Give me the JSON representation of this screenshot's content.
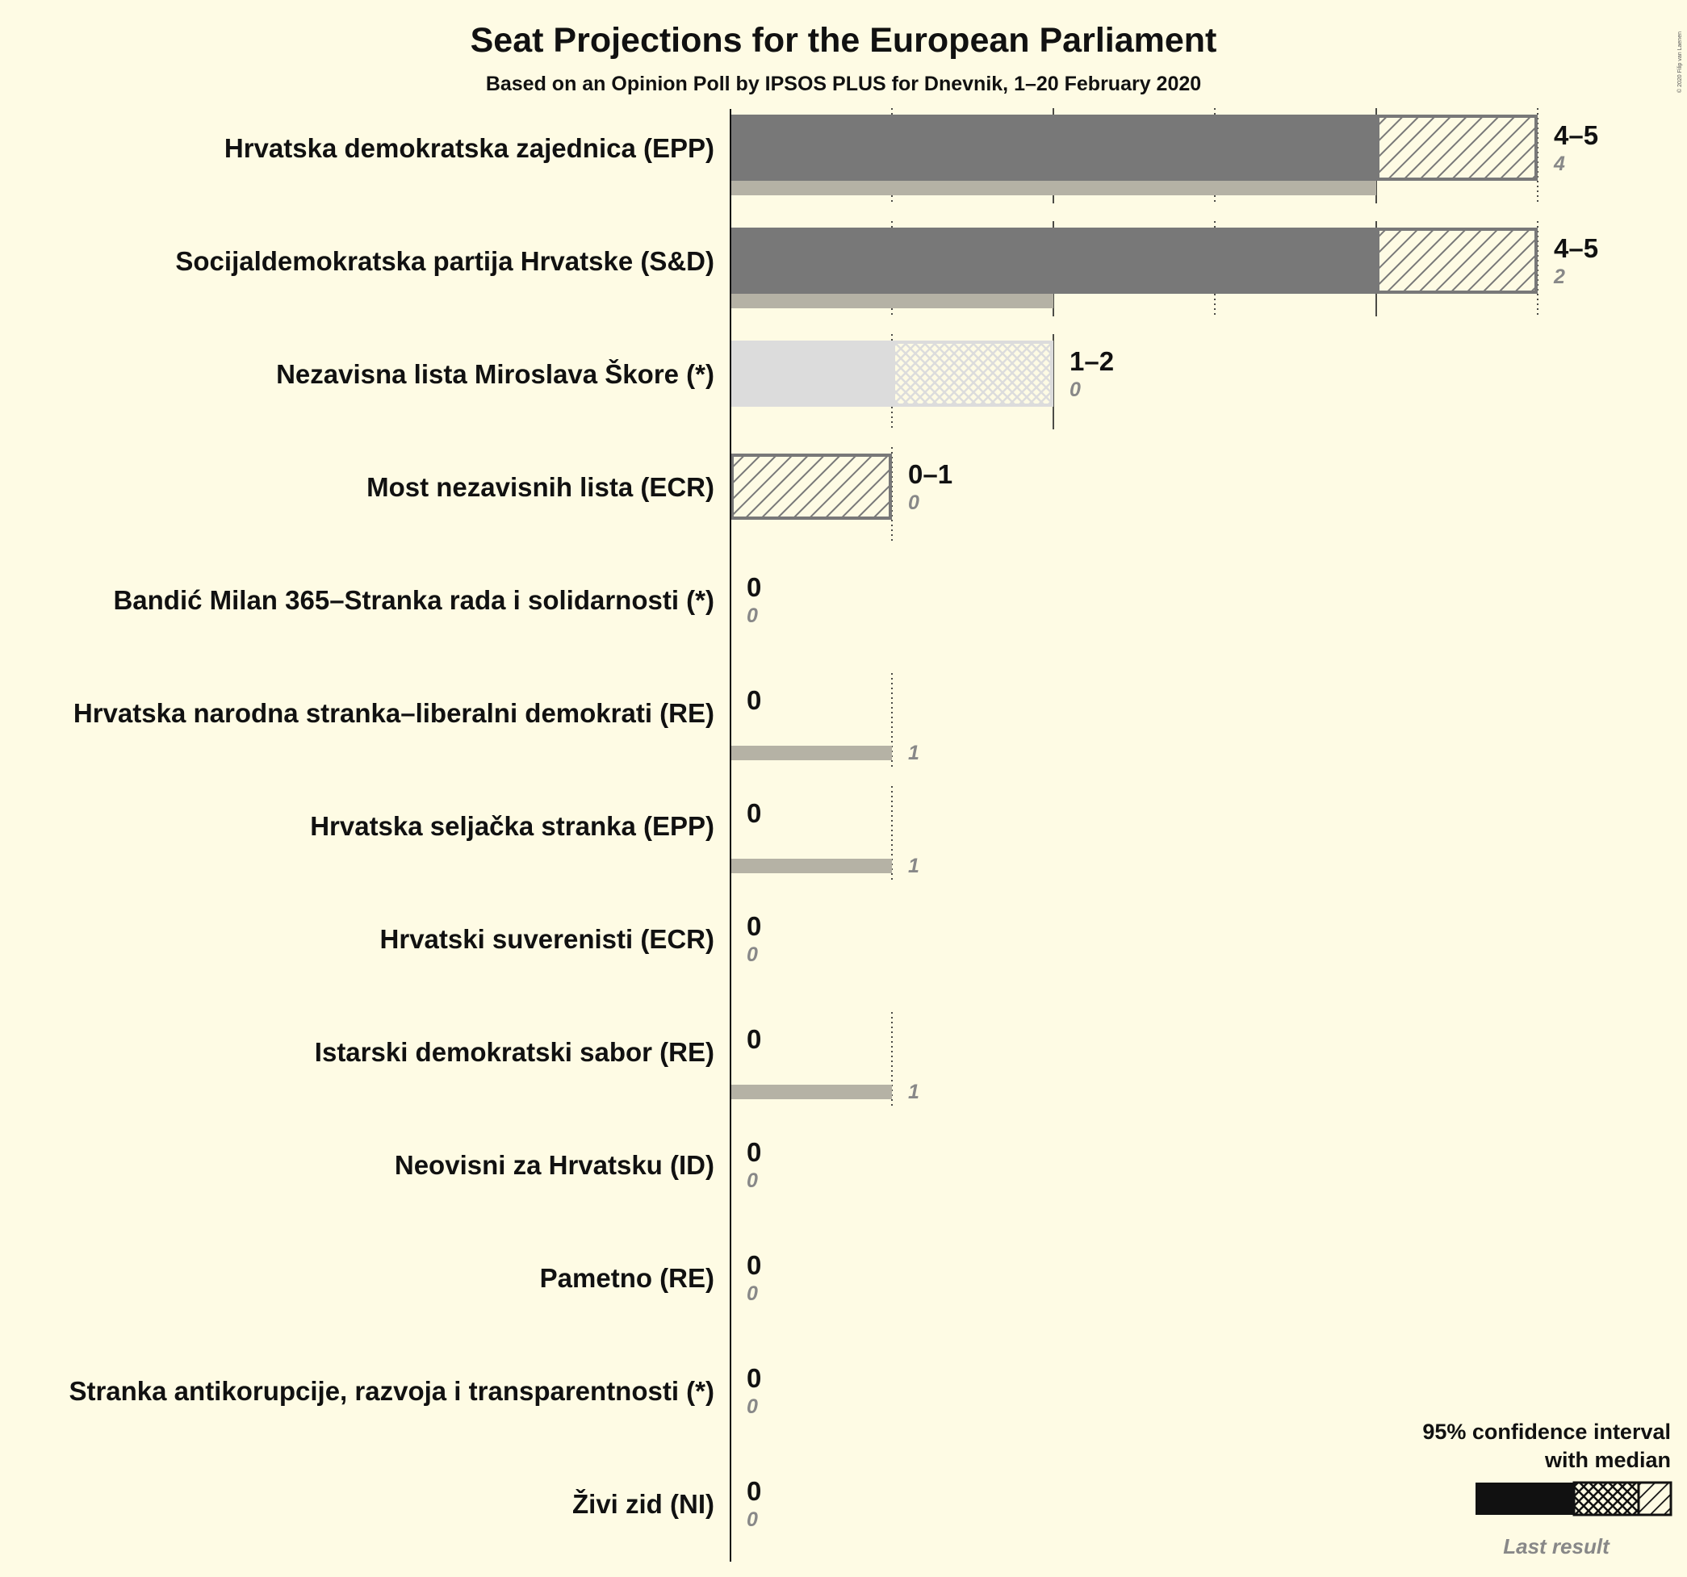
{
  "title": "Seat Projections for the European Parliament",
  "subtitle": "Based on an Opinion Poll by IPSOS PLUS for Dnevnik, 1–20 February 2020",
  "copyright": "© 2020 Filip van Laenen",
  "legend": {
    "line1": "95% confidence interval",
    "line2": "with median",
    "last_result": "Last result"
  },
  "colors": {
    "background": "#fefbe4",
    "bar_dark": "#787878",
    "bar_light": "#dcdcdc",
    "last_result": "#b5b2a5",
    "legend_bar": "#111111",
    "legend_last": "#7d7b73"
  },
  "chart_data": {
    "type": "bar",
    "orientation": "horizontal",
    "x_range": [
      0,
      5
    ],
    "parties": [
      {
        "name": "Hrvatska demokratska zajednica (EPP)",
        "low": 4,
        "median": 4,
        "high": 5,
        "label": "4–5",
        "last": 4,
        "last_label": "4",
        "style": "dark"
      },
      {
        "name": "Socijaldemokratska partija Hrvatske (S&D)",
        "low": 4,
        "median": 4,
        "high": 5,
        "label": "4–5",
        "last": 2,
        "last_label": "2",
        "style": "dark"
      },
      {
        "name": "Nezavisna lista Miroslava Škore (*)",
        "low": 1,
        "median": 1,
        "high": 2,
        "label": "1–2",
        "last": 0,
        "last_label": "0",
        "style": "light"
      },
      {
        "name": "Most nezavisnih lista (ECR)",
        "low": 0,
        "median": 0,
        "high": 1,
        "label": "0–1",
        "last": 0,
        "last_label": "0",
        "style": "dark"
      },
      {
        "name": "Bandić Milan 365–Stranka rada i solidarnosti (*)",
        "low": 0,
        "median": 0,
        "high": 0,
        "label": "0",
        "last": 0,
        "last_label": "0",
        "style": "light"
      },
      {
        "name": "Hrvatska narodna stranka–liberalni demokrati (RE)",
        "low": 0,
        "median": 0,
        "high": 0,
        "label": "0",
        "last": 1,
        "last_label": "1",
        "style": "dark"
      },
      {
        "name": "Hrvatska seljačka stranka (EPP)",
        "low": 0,
        "median": 0,
        "high": 0,
        "label": "0",
        "last": 1,
        "last_label": "1",
        "style": "dark"
      },
      {
        "name": "Hrvatski suverenisti (ECR)",
        "low": 0,
        "median": 0,
        "high": 0,
        "label": "0",
        "last": 0,
        "last_label": "0",
        "style": "dark"
      },
      {
        "name": "Istarski demokratski sabor (RE)",
        "low": 0,
        "median": 0,
        "high": 0,
        "label": "0",
        "last": 1,
        "last_label": "1",
        "style": "dark"
      },
      {
        "name": "Neovisni za Hrvatsku (ID)",
        "low": 0,
        "median": 0,
        "high": 0,
        "label": "0",
        "last": 0,
        "last_label": "0",
        "style": "dark"
      },
      {
        "name": "Pametno (RE)",
        "low": 0,
        "median": 0,
        "high": 0,
        "label": "0",
        "last": 0,
        "last_label": "0",
        "style": "dark"
      },
      {
        "name": "Stranka antikorupcije, razvoja i transparentnosti (*)",
        "low": 0,
        "median": 0,
        "high": 0,
        "label": "0",
        "last": 0,
        "last_label": "0",
        "style": "light"
      },
      {
        "name": "Živi zid (NI)",
        "low": 0,
        "median": 0,
        "high": 0,
        "label": "0",
        "last": 0,
        "last_label": "0",
        "style": "dark"
      }
    ]
  }
}
